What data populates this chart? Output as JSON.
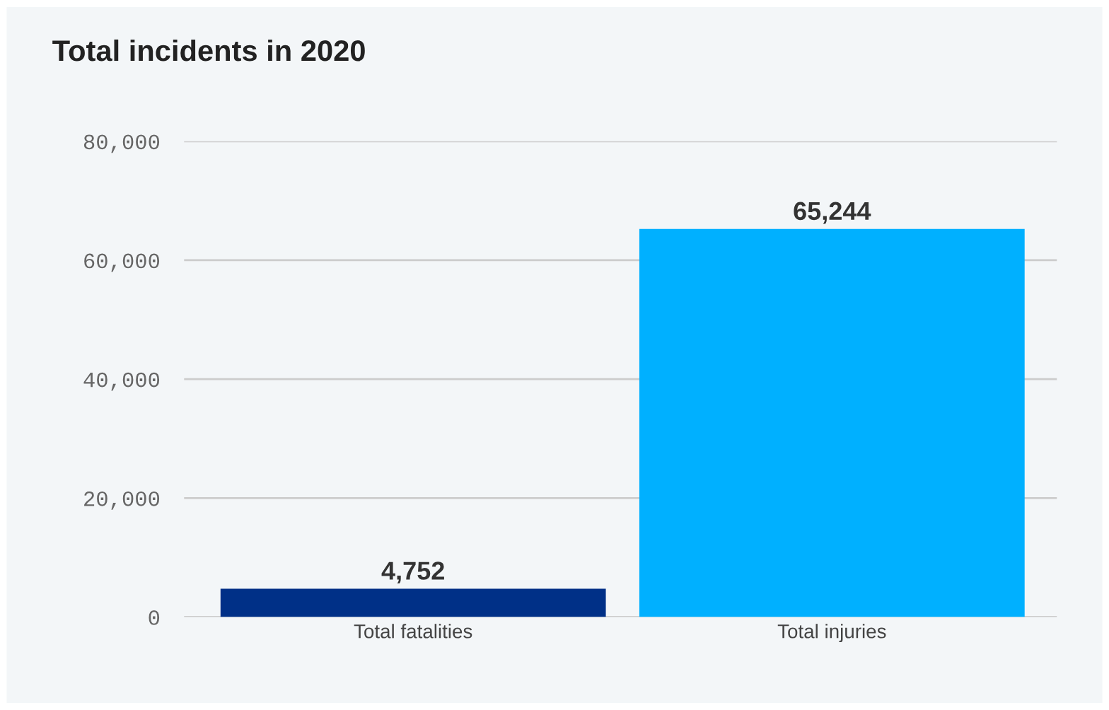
{
  "chart_data": {
    "type": "bar",
    "title": "Total incidents in 2020",
    "categories": [
      "Total fatalities",
      "Total injuries"
    ],
    "values": [
      4752,
      65244
    ],
    "colors": [
      "#003087",
      "#00b0ff"
    ],
    "value_labels": [
      "4,752",
      "65,244"
    ],
    "ylim": [
      0,
      80000
    ],
    "yticks": [
      0,
      {
        "value": 20000,
        "label": "20,000"
      },
      {
        "value": 40000,
        "label": "40,000"
      },
      {
        "value": 60000,
        "label": "60,000"
      },
      {
        "value": 80000,
        "label": "80,000"
      }
    ],
    "grid": "y",
    "legend": false
  }
}
